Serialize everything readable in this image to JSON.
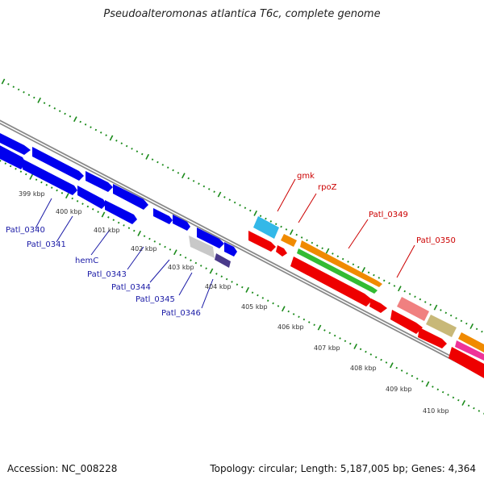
{
  "title": "Pseudoalteromonas atlantica T6c, complete genome",
  "footer": {
    "accession": "Accession: NC_008228",
    "summary": "Topology: circular; Length: 5,187,005 bp; Genes: 4,364"
  },
  "colors": {
    "backbone": "#888888",
    "tick": "#1a8a1a",
    "forward_gene_fill": "#0000ee",
    "label_blue": "#1a1aa6",
    "label_red": "#cc0000"
  },
  "scale_labels": [
    "399 kbp",
    "400 kbp",
    "401 kbp",
    "402 kbp",
    "403 kbp",
    "404 kbp",
    "405 kbp",
    "406 kbp",
    "407 kbp",
    "408 kbp",
    "409 kbp",
    "410 kbp"
  ],
  "gene_labels_left": [
    "Patl_0340",
    "Patl_0341",
    "hemC",
    "Patl_0343",
    "Patl_0344",
    "Patl_0345",
    "Patl_0346"
  ],
  "gene_labels_right": [
    "gmk",
    "rpoZ",
    "Patl_0349",
    "Patl_0350"
  ]
}
